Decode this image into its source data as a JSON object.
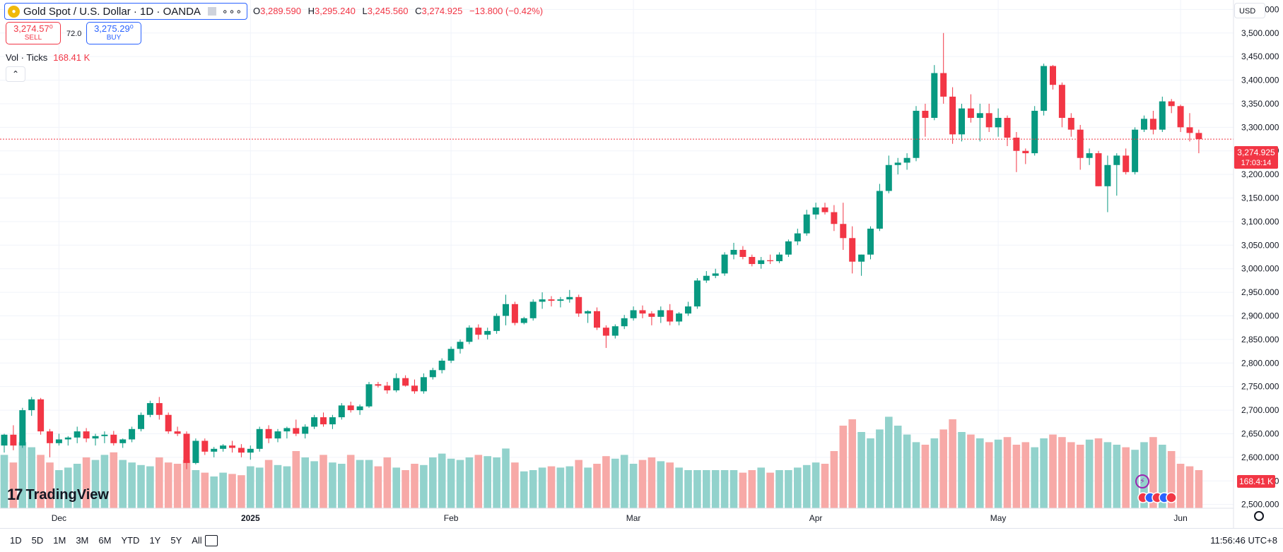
{
  "header": {
    "symbol_title": "Gold Spot / U.S. Dollar · 1D · OANDA",
    "ohlc": {
      "o_label": "O",
      "o": "3,289.590",
      "h_label": "H",
      "h": "3,295.240",
      "l_label": "L",
      "l": "3,245.560",
      "c_label": "C",
      "c": "3,274.925",
      "change": "−13.800 (−0.42%)"
    },
    "sell_price": "3,274.57⁰",
    "sell_label": "SELL",
    "buy_price": "3,275.29⁰",
    "buy_label": "BUY",
    "spread": "72.0",
    "volume_label": "Vol · Ticks",
    "volume_value": "168.41 K",
    "currency": "USD",
    "collapse_icon": "chevron-up-icon"
  },
  "price_tag": {
    "price": "3,274.925",
    "countdown": "17:03:14"
  },
  "volume_tag": "168.41 K",
  "branding": {
    "logo_text": "TradingView"
  },
  "footer": {
    "ranges": [
      "1D",
      "5D",
      "1M",
      "3M",
      "6M",
      "YTD",
      "1Y",
      "5Y",
      "All"
    ],
    "clock": "11:56:46 UTC+8"
  },
  "colors": {
    "up": "#089981",
    "down": "#f23645",
    "vol_up": "#92d2cc",
    "vol_down": "#f7a9a7",
    "accent": "#2962ff"
  },
  "chart_data": {
    "type": "candlestick",
    "x_tick_labels": [
      {
        "label": "Dec",
        "index": 6
      },
      {
        "label": "2025",
        "index": 27
      },
      {
        "label": "Feb",
        "index": 49
      },
      {
        "label": "Mar",
        "index": 69
      },
      {
        "label": "Apr",
        "index": 89
      },
      {
        "label": "May",
        "index": 109
      },
      {
        "label": "Jun",
        "index": 129
      }
    ],
    "y_axis": {
      "range": [
        2492,
        3570
      ],
      "ticks": [
        2500,
        2550,
        2600,
        2650,
        2700,
        2750,
        2800,
        2850,
        2900,
        2950,
        3000,
        3050,
        3100,
        3150,
        3200,
        3250,
        3300,
        3350,
        3400,
        3450,
        3500,
        3550
      ],
      "tick_labels": [
        "2,500.000",
        "2,550.000",
        "2,600.000",
        "2,650.000",
        "2,700.000",
        "2,750.000",
        "2,800.000",
        "2,850.000",
        "2,900.000",
        "2,950.000",
        "3,000.000",
        "3,050.000",
        "3,100.000",
        "3,150.000",
        "3,200.000",
        "3,250.000",
        "3,300.000",
        "3,350.000",
        "3,400.000",
        "3,450.000",
        "3,500.000",
        "3,550.000"
      ]
    },
    "volume_max": 1,
    "last_price": 3274.925,
    "candles": [
      [
        2625,
        2650,
        2610,
        2648,
        0.42
      ],
      [
        2648,
        2668,
        2615,
        2625,
        0.36
      ],
      [
        2625,
        2705,
        2620,
        2700,
        0.52
      ],
      [
        2700,
        2728,
        2688,
        2723,
        0.48
      ],
      [
        2723,
        2726,
        2648,
        2655,
        0.42
      ],
      [
        2655,
        2660,
        2600,
        2630,
        0.36
      ],
      [
        2630,
        2650,
        2625,
        2638,
        0.3
      ],
      [
        2638,
        2645,
        2625,
        2642,
        0.32
      ],
      [
        2642,
        2665,
        2630,
        2655,
        0.35
      ],
      [
        2655,
        2662,
        2632,
        2640,
        0.4
      ],
      [
        2640,
        2650,
        2625,
        2645,
        0.38
      ],
      [
        2645,
        2655,
        2630,
        2648,
        0.42
      ],
      [
        2648,
        2656,
        2625,
        2630,
        0.44
      ],
      [
        2630,
        2640,
        2620,
        2638,
        0.38
      ],
      [
        2638,
        2665,
        2632,
        2660,
        0.36
      ],
      [
        2660,
        2695,
        2655,
        2690,
        0.34
      ],
      [
        2690,
        2720,
        2685,
        2715,
        0.33
      ],
      [
        2715,
        2728,
        2680,
        2690,
        0.4
      ],
      [
        2690,
        2695,
        2650,
        2655,
        0.36
      ],
      [
        2655,
        2665,
        2645,
        2650,
        0.35
      ],
      [
        2650,
        2655,
        2575,
        2588,
        0.38
      ],
      [
        2588,
        2640,
        2585,
        2635,
        0.3
      ],
      [
        2635,
        2640,
        2605,
        2612,
        0.28
      ],
      [
        2612,
        2622,
        2600,
        2618,
        0.25
      ],
      [
        2618,
        2628,
        2612,
        2625,
        0.28
      ],
      [
        2625,
        2635,
        2610,
        2620,
        0.27
      ],
      [
        2620,
        2628,
        2600,
        2610,
        0.26
      ],
      [
        2610,
        2625,
        2595,
        2618,
        0.33
      ],
      [
        2618,
        2665,
        2612,
        2660,
        0.32
      ],
      [
        2660,
        2668,
        2630,
        2640,
        0.38
      ],
      [
        2640,
        2660,
        2632,
        2655,
        0.34
      ],
      [
        2655,
        2665,
        2640,
        2662,
        0.33
      ],
      [
        2662,
        2680,
        2645,
        2650,
        0.45
      ],
      [
        2650,
        2670,
        2640,
        2665,
        0.4
      ],
      [
        2665,
        2690,
        2660,
        2685,
        0.37
      ],
      [
        2685,
        2695,
        2665,
        2670,
        0.42
      ],
      [
        2670,
        2690,
        2660,
        2685,
        0.36
      ],
      [
        2685,
        2715,
        2680,
        2710,
        0.35
      ],
      [
        2710,
        2718,
        2695,
        2700,
        0.42
      ],
      [
        2700,
        2712,
        2690,
        2708,
        0.38
      ],
      [
        2708,
        2760,
        2705,
        2755,
        0.38
      ],
      [
        2755,
        2760,
        2748,
        2752,
        0.33
      ],
      [
        2752,
        2760,
        2735,
        2742,
        0.4
      ],
      [
        2742,
        2778,
        2738,
        2768,
        0.32
      ],
      [
        2768,
        2774,
        2750,
        2752,
        0.3
      ],
      [
        2752,
        2765,
        2735,
        2740,
        0.35
      ],
      [
        2740,
        2778,
        2735,
        2770,
        0.34
      ],
      [
        2770,
        2790,
        2765,
        2785,
        0.4
      ],
      [
        2785,
        2810,
        2778,
        2805,
        0.43
      ],
      [
        2805,
        2835,
        2800,
        2830,
        0.39
      ],
      [
        2830,
        2850,
        2820,
        2845,
        0.38
      ],
      [
        2845,
        2880,
        2840,
        2875,
        0.4
      ],
      [
        2875,
        2882,
        2850,
        2860,
        0.42
      ],
      [
        2860,
        2875,
        2850,
        2868,
        0.41
      ],
      [
        2868,
        2905,
        2862,
        2900,
        0.4
      ],
      [
        2900,
        2945,
        2880,
        2925,
        0.47
      ],
      [
        2925,
        2930,
        2880,
        2885,
        0.36
      ],
      [
        2885,
        2898,
        2882,
        2895,
        0.29
      ],
      [
        2895,
        2935,
        2890,
        2930,
        0.3
      ],
      [
        2930,
        2950,
        2915,
        2935,
        0.32
      ],
      [
        2935,
        2942,
        2920,
        2932,
        0.33
      ],
      [
        2932,
        2940,
        2918,
        2935,
        0.32
      ],
      [
        2935,
        2955,
        2928,
        2940,
        0.33
      ],
      [
        2940,
        2945,
        2898,
        2905,
        0.38
      ],
      [
        2905,
        2912,
        2885,
        2910,
        0.32
      ],
      [
        2910,
        2918,
        2870,
        2875,
        0.35
      ],
      [
        2875,
        2880,
        2832,
        2858,
        0.41
      ],
      [
        2858,
        2882,
        2852,
        2878,
        0.39
      ],
      [
        2878,
        2902,
        2872,
        2895,
        0.42
      ],
      [
        2895,
        2920,
        2890,
        2912,
        0.35
      ],
      [
        2912,
        2922,
        2895,
        2905,
        0.38
      ],
      [
        2905,
        2910,
        2880,
        2898,
        0.4
      ],
      [
        2898,
        2920,
        2885,
        2912,
        0.37
      ],
      [
        2912,
        2925,
        2880,
        2888,
        0.36
      ],
      [
        2888,
        2908,
        2880,
        2905,
        0.32
      ],
      [
        2905,
        2930,
        2900,
        2920,
        0.3
      ],
      [
        2920,
        2980,
        2915,
        2975,
        0.3
      ],
      [
        2975,
        2995,
        2970,
        2985,
        0.3
      ],
      [
        2985,
        3000,
        2980,
        2990,
        0.3
      ],
      [
        2990,
        3035,
        2985,
        3030,
        0.3
      ],
      [
        3030,
        3055,
        3020,
        3040,
        0.3
      ],
      [
        3040,
        3048,
        3020,
        3025,
        0.28
      ],
      [
        3025,
        3030,
        3005,
        3010,
        0.3
      ],
      [
        3010,
        3025,
        3000,
        3018,
        0.32
      ],
      [
        3018,
        3030,
        3010,
        3016,
        0.28
      ],
      [
        3016,
        3035,
        3012,
        3030,
        0.3
      ],
      [
        3030,
        3062,
        3025,
        3058,
        0.3
      ],
      [
        3058,
        3085,
        3050,
        3075,
        0.32
      ],
      [
        3075,
        3125,
        3070,
        3115,
        0.34
      ],
      [
        3115,
        3140,
        3105,
        3130,
        0.36
      ],
      [
        3130,
        3140,
        3115,
        3120,
        0.35
      ],
      [
        3120,
        3135,
        3080,
        3095,
        0.45
      ],
      [
        3095,
        3140,
        3040,
        3065,
        0.65
      ],
      [
        3065,
        3090,
        2990,
        3015,
        0.7
      ],
      [
        3015,
        3030,
        2985,
        3030,
        0.6
      ],
      [
        3030,
        3090,
        3020,
        3085,
        0.55
      ],
      [
        3085,
        3180,
        3080,
        3165,
        0.62
      ],
      [
        3165,
        3240,
        3160,
        3220,
        0.72
      ],
      [
        3220,
        3235,
        3200,
        3225,
        0.65
      ],
      [
        3225,
        3245,
        3210,
        3235,
        0.58
      ],
      [
        3235,
        3345,
        3228,
        3335,
        0.52
      ],
      [
        3335,
        3350,
        3280,
        3320,
        0.5
      ],
      [
        3320,
        3432,
        3315,
        3415,
        0.55
      ],
      [
        3415,
        3500,
        3350,
        3365,
        0.62
      ],
      [
        3365,
        3385,
        3265,
        3285,
        0.7
      ],
      [
        3285,
        3350,
        3270,
        3340,
        0.6
      ],
      [
        3340,
        3370,
        3310,
        3320,
        0.58
      ],
      [
        3320,
        3350,
        3270,
        3330,
        0.55
      ],
      [
        3330,
        3350,
        3290,
        3300,
        0.52
      ],
      [
        3300,
        3340,
        3280,
        3320,
        0.54
      ],
      [
        3320,
        3325,
        3260,
        3278,
        0.56
      ],
      [
        3278,
        3290,
        3205,
        3250,
        0.5
      ],
      [
        3250,
        3255,
        3222,
        3245,
        0.52
      ],
      [
        3245,
        3345,
        3240,
        3335,
        0.48
      ],
      [
        3335,
        3435,
        3325,
        3430,
        0.55
      ],
      [
        3430,
        3432,
        3380,
        3390,
        0.58
      ],
      [
        3390,
        3395,
        3300,
        3320,
        0.56
      ],
      [
        3320,
        3330,
        3280,
        3295,
        0.52
      ],
      [
        3295,
        3305,
        3210,
        3235,
        0.5
      ],
      [
        3235,
        3255,
        3220,
        3245,
        0.54
      ],
      [
        3245,
        3250,
        3175,
        3175,
        0.55
      ],
      [
        3175,
        3240,
        3120,
        3220,
        0.52
      ],
      [
        3220,
        3245,
        3155,
        3240,
        0.5
      ],
      [
        3240,
        3255,
        3200,
        3205,
        0.48
      ],
      [
        3205,
        3300,
        3200,
        3295,
        0.46
      ],
      [
        3295,
        3325,
        3290,
        3318,
        0.52
      ],
      [
        3318,
        3335,
        3285,
        3295,
        0.56
      ],
      [
        3295,
        3365,
        3290,
        3355,
        0.5
      ],
      [
        3355,
        3360,
        3330,
        3345,
        0.45
      ],
      [
        3345,
        3348,
        3290,
        3300,
        0.35
      ],
      [
        3300,
        3330,
        3270,
        3288,
        0.33
      ],
      [
        3288,
        3295,
        3245,
        3274.925,
        0.3
      ]
    ]
  }
}
